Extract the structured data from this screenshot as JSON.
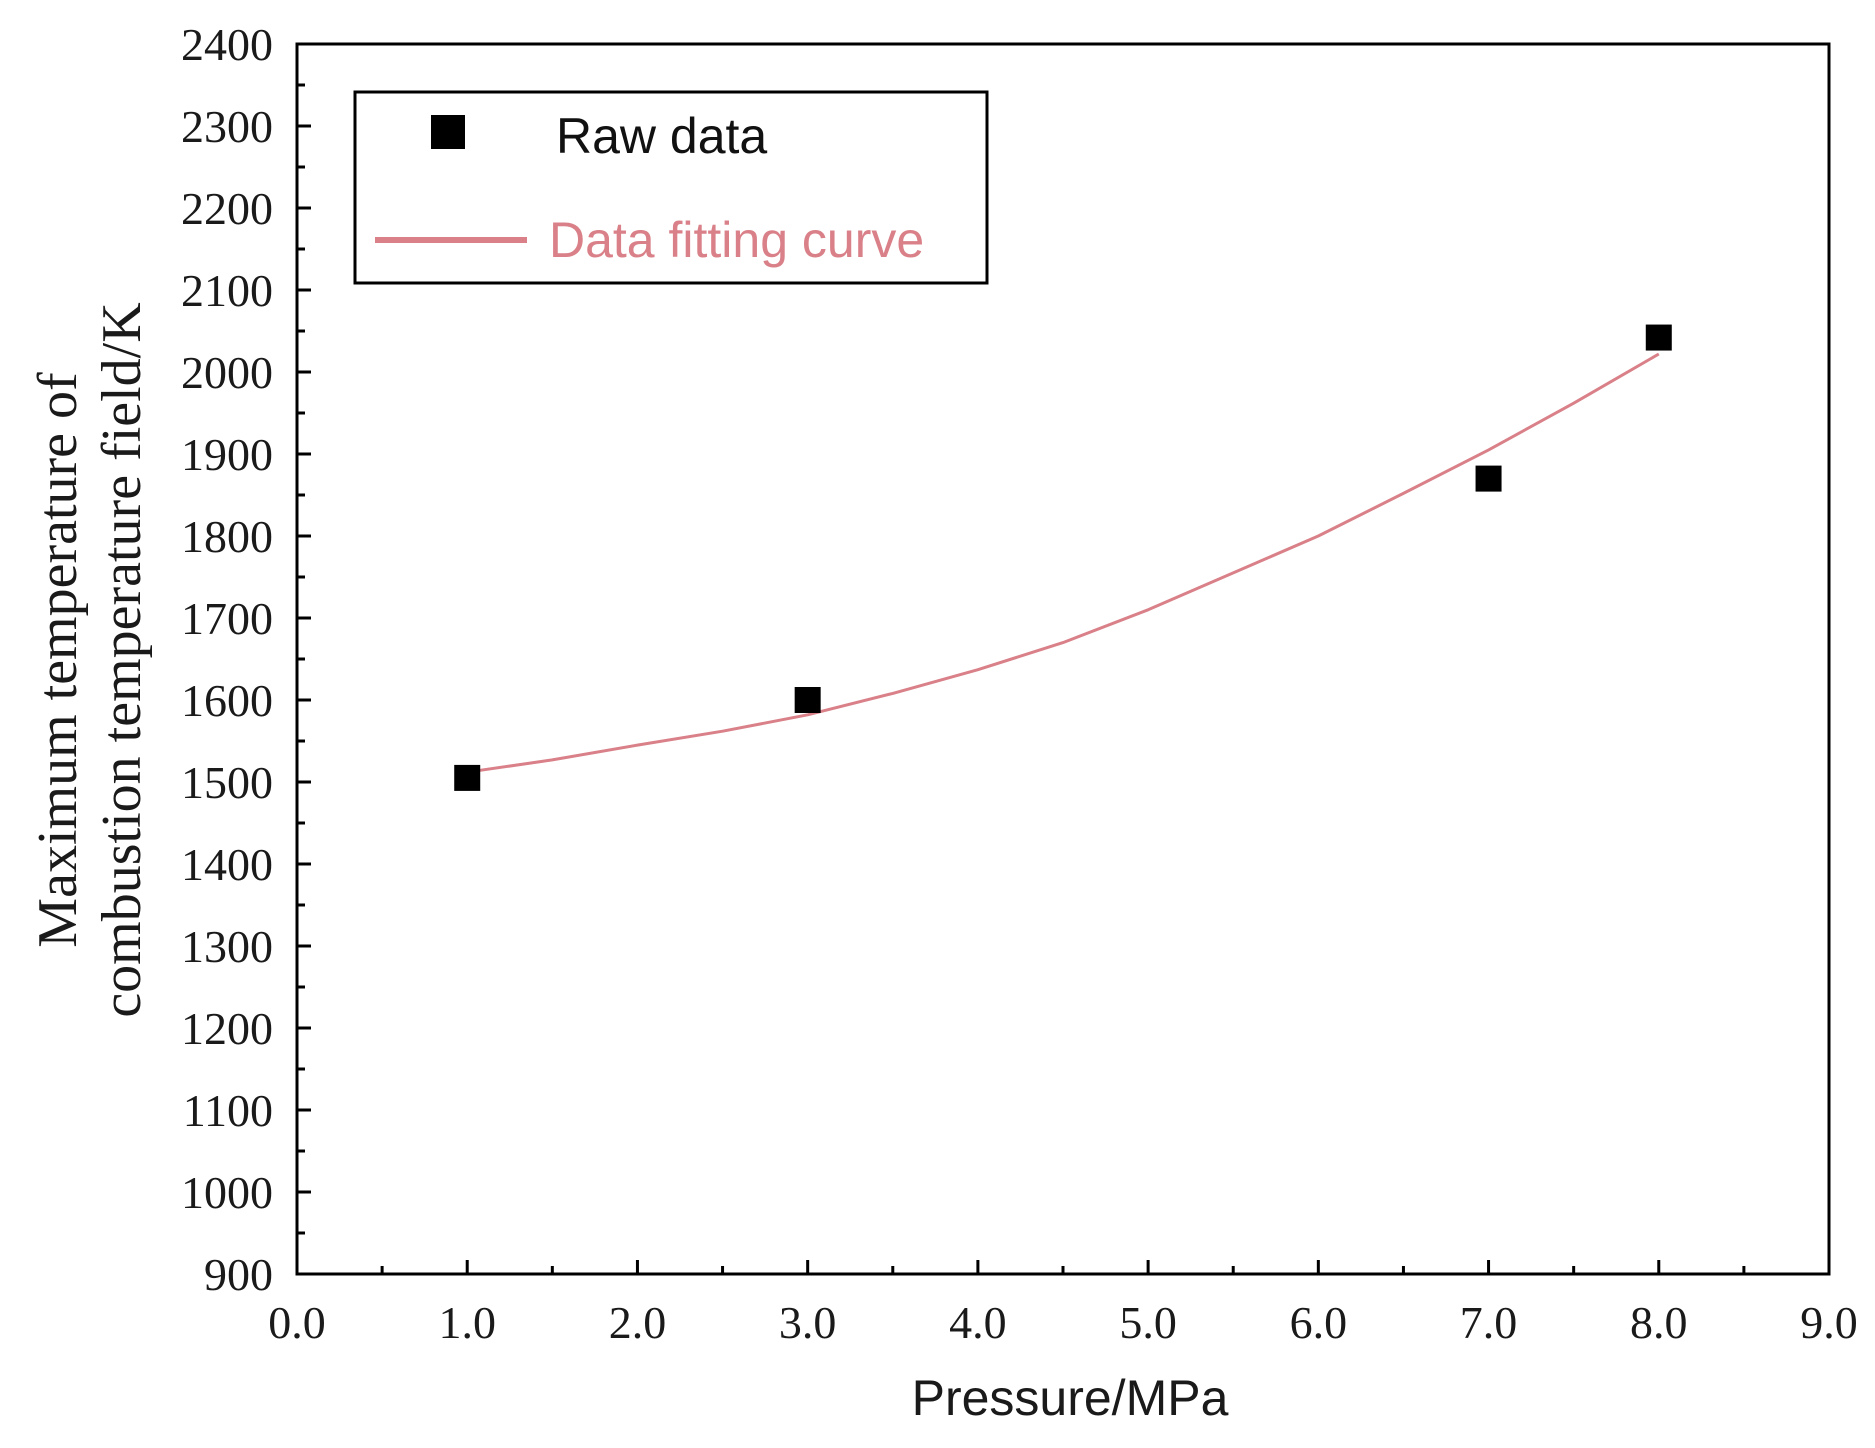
{
  "chart_data": {
    "type": "scatter",
    "title": "",
    "xlabel": "Pressure/MPa",
    "ylabel_lines": [
      "Maximum temperature of",
      "combustion temperature field/K"
    ],
    "xlim": [
      0,
      9
    ],
    "ylim": [
      900,
      2400
    ],
    "x_ticks": [
      0,
      1,
      2,
      3,
      4,
      5,
      6,
      7,
      8,
      9
    ],
    "x_tick_labels": [
      "0.0",
      "1.0",
      "2.0",
      "3.0",
      "4.0",
      "5.0",
      "6.0",
      "7.0",
      "8.0",
      "9.0"
    ],
    "y_ticks": [
      900,
      1000,
      1100,
      1200,
      1300,
      1400,
      1500,
      1600,
      1700,
      1800,
      1900,
      2000,
      2100,
      2200,
      2300,
      2400
    ],
    "y_tick_labels": [
      "900",
      "1000",
      "1100",
      "1200",
      "1300",
      "1400",
      "1500",
      "1600",
      "1700",
      "1800",
      "1900",
      "2000",
      "2100",
      "2200",
      "2300",
      "2400"
    ],
    "grid": false,
    "legend_position": "top-left",
    "series": [
      {
        "name": "Raw data",
        "kind": "scatter",
        "marker": "square",
        "color": "#000000",
        "x": [
          1.0,
          3.0,
          7.0,
          8.0
        ],
        "y": [
          1505,
          1600,
          1870,
          2042
        ]
      },
      {
        "name": "Data fitting curve",
        "kind": "line",
        "color": "#d98088",
        "x": [
          1.0,
          1.5,
          2.0,
          2.5,
          3.0,
          3.5,
          4.0,
          4.5,
          5.0,
          5.5,
          6.0,
          6.5,
          7.0,
          7.5,
          8.0
        ],
        "y": [
          1512,
          1527,
          1545,
          1562,
          1582,
          1608,
          1637,
          1670,
          1710,
          1755,
          1800,
          1852,
          1905,
          1962,
          2022
        ]
      }
    ]
  }
}
